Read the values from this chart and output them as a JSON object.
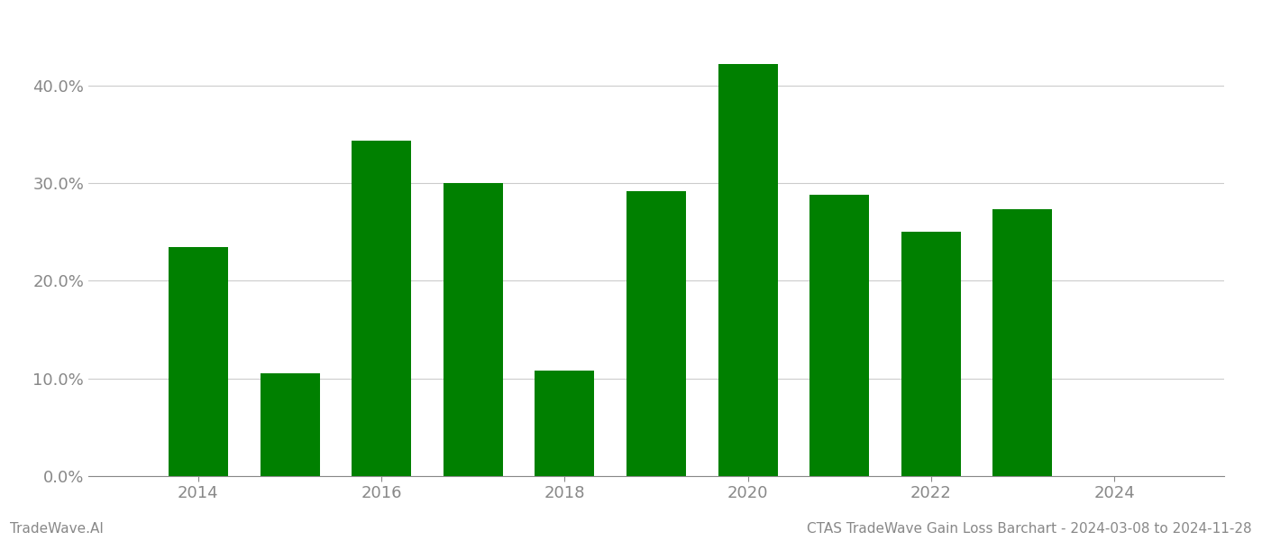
{
  "years": [
    2014,
    2015,
    2016,
    2017,
    2018,
    2019,
    2020,
    2021,
    2022,
    2023
  ],
  "values": [
    0.235,
    0.105,
    0.344,
    0.3,
    0.108,
    0.292,
    0.422,
    0.288,
    0.25,
    0.273
  ],
  "bar_color": "#008000",
  "background_color": "#ffffff",
  "grid_color": "#cccccc",
  "axis_label_color": "#888888",
  "ylabel_ticks": [
    0.0,
    0.1,
    0.2,
    0.3,
    0.4
  ],
  "ylim": [
    0,
    0.46
  ],
  "xlim": [
    2012.8,
    2025.2
  ],
  "xticks": [
    2014,
    2016,
    2018,
    2020,
    2022,
    2024
  ],
  "footer_left": "TradeWave.AI",
  "footer_right": "CTAS TradeWave Gain Loss Barchart - 2024-03-08 to 2024-11-28",
  "footer_color": "#888888",
  "footer_fontsize": 11,
  "tick_labelsize": 13,
  "bar_width": 0.65
}
